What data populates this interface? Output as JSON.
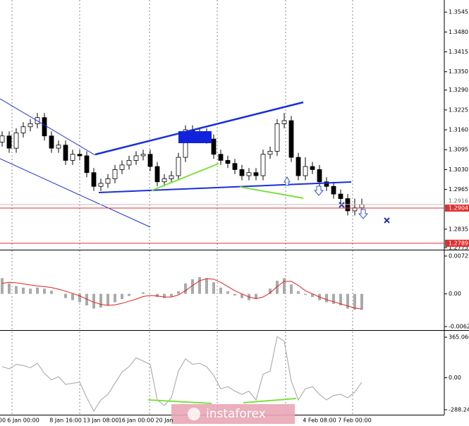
{
  "chart_data": [
    {
      "type": "candlestick",
      "categories": [
        "00",
        null,
        null,
        "6 Jan 00:00",
        null,
        null,
        null,
        null,
        null,
        "8 Jan 16:00",
        null,
        null,
        null,
        null,
        "13 Jan 08:00",
        null,
        null,
        null,
        null,
        "16 Jan 00:00",
        null,
        null,
        null,
        "20 Jan",
        null,
        null,
        null,
        null,
        null,
        null,
        null,
        null,
        null,
        null,
        null,
        null,
        null,
        null,
        null,
        null,
        null,
        null,
        null,
        null,
        null,
        "4 Feb 08:00",
        null,
        null,
        null,
        null,
        "7 Feb 00:00",
        null
      ],
      "open": [
        1.312,
        1.314,
        1.31,
        1.315,
        1.317,
        1.318,
        1.32,
        1.314,
        1.31,
        1.311,
        1.306,
        1.308,
        1.3075,
        1.302,
        1.2975,
        1.2985,
        1.3,
        1.303,
        1.3045,
        1.306,
        1.3075,
        1.308,
        1.304,
        1.299,
        1.3,
        1.301,
        1.307,
        1.316,
        1.314,
        1.315,
        1.313,
        1.308,
        1.306,
        1.305,
        1.303,
        1.301,
        1.302,
        1.301,
        1.308,
        1.309,
        1.318,
        1.319,
        1.307,
        1.301,
        1.304,
        1.303,
        1.299,
        1.2975,
        1.295,
        1.2935,
        1.2895,
        1.2905
      ],
      "high": [
        1.3155,
        1.3155,
        1.3165,
        1.3185,
        1.3195,
        1.3215,
        1.3215,
        1.3155,
        1.3125,
        1.3125,
        1.3095,
        1.3095,
        1.309,
        1.3035,
        1.3,
        1.3015,
        1.3045,
        1.306,
        1.3075,
        1.309,
        1.3095,
        1.3095,
        1.3055,
        1.3015,
        1.3025,
        1.3085,
        1.3175,
        1.3175,
        1.3165,
        1.3165,
        1.3145,
        1.3095,
        1.3075,
        1.3065,
        1.3045,
        1.3035,
        1.3035,
        1.3095,
        1.3105,
        1.3195,
        1.3215,
        1.3205,
        1.3085,
        1.307,
        1.3055,
        1.3045,
        1.3005,
        1.299,
        1.2965,
        1.295,
        1.2935,
        1.2935
      ],
      "low": [
        1.3105,
        1.3085,
        1.3085,
        1.3135,
        1.3155,
        1.3165,
        1.3125,
        1.3085,
        1.3085,
        1.3045,
        1.3045,
        1.306,
        1.3005,
        1.296,
        1.296,
        1.297,
        1.2985,
        1.3015,
        1.303,
        1.3045,
        1.306,
        1.3025,
        1.2975,
        1.2975,
        1.2985,
        1.2995,
        1.3055,
        1.3125,
        1.3125,
        1.3115,
        1.3065,
        1.3045,
        1.3035,
        1.3015,
        1.2995,
        1.2995,
        1.2995,
        1.2995,
        1.3065,
        1.3075,
        1.3165,
        1.3055,
        1.2995,
        1.2995,
        1.3015,
        1.2975,
        1.296,
        1.2935,
        1.292,
        1.288,
        1.288,
        1.289
      ],
      "close": [
        1.314,
        1.31,
        1.315,
        1.317,
        1.318,
        1.32,
        1.314,
        1.31,
        1.311,
        1.306,
        1.308,
        1.3075,
        1.302,
        1.2975,
        1.2985,
        1.3,
        1.303,
        1.3045,
        1.306,
        1.3075,
        1.308,
        1.304,
        1.299,
        1.3,
        1.301,
        1.307,
        1.316,
        1.314,
        1.315,
        1.313,
        1.308,
        1.306,
        1.305,
        1.303,
        1.301,
        1.302,
        1.301,
        1.308,
        1.309,
        1.318,
        1.319,
        1.307,
        1.301,
        1.304,
        1.303,
        1.299,
        1.2975,
        1.295,
        1.2935,
        1.2895,
        1.2905,
        1.2916
      ],
      "ylim": [
        1.2768,
        1.358
      ],
      "yticks": [
        1.3545,
        {
          "value": 1.348,
          "label": "1.3480"
        },
        1.3415,
        {
          "value": 1.335,
          "label": "1.3350"
        },
        {
          "value": 1.329,
          "label": "1.3290"
        },
        1.3225,
        {
          "value": 1.316,
          "label": "1.3160"
        },
        1.3095,
        {
          "value": 1.303,
          "label": "1.3030"
        },
        1.2965,
        1.2835,
        1.2775
      ],
      "levels": [
        1.2904,
        1.2789
      ],
      "level_color": "#e03030",
      "current_price": 1.2916
    },
    {
      "type": "macd",
      "histogram": [
        0.003,
        0.002,
        0.0015,
        0.0012,
        0.001,
        0.0012,
        0.001,
        0.0006,
        0,
        -0.0008,
        -0.0012,
        -0.0016,
        -0.0022,
        -0.0028,
        -0.0026,
        -0.0022,
        -0.0016,
        -0.001,
        -0.0004,
        0,
        0.0003,
        0,
        -0.0006,
        -0.0008,
        -0.0005,
        0.0005,
        0.002,
        0.0028,
        0.0032,
        0.003,
        0.0022,
        0.0012,
        0.0005,
        -0.0003,
        -0.0008,
        -0.0012,
        -0.001,
        0,
        0.001,
        0.0025,
        0.003,
        0.0018,
        0.0005,
        -0.0002,
        -0.0006,
        -0.0012,
        -0.0016,
        -0.0019,
        -0.0022,
        -0.0028,
        -0.003,
        -0.003
      ],
      "signal": [
        0.002,
        0.0022,
        0.0021,
        0.0019,
        0.0017,
        0.0015,
        0.0014,
        0.0012,
        0.0009,
        0.0005,
        0.0001,
        -0.0004,
        -0.001,
        -0.0016,
        -0.002,
        -0.0022,
        -0.0021,
        -0.0018,
        -0.0014,
        -0.001,
        -0.0005,
        -0.0003,
        -0.0004,
        -0.0006,
        -0.0006,
        -0.0002,
        0.0006,
        0.0016,
        0.0025,
        0.0029,
        0.0028,
        0.0022,
        0.0014,
        0.0006,
        0,
        -0.0006,
        -0.0009,
        -0.0006,
        0.0002,
        0.0014,
        0.0024,
        0.0024,
        0.0016,
        0.0006,
        0,
        -0.0006,
        -0.0011,
        -0.0015,
        -0.0019,
        -0.0023,
        -0.0027,
        -0.0029
      ],
      "histogram_color": "#aaaaaa",
      "signal_color": "#e02020",
      "ylim": [
        -0.00677,
        0.00816
      ],
      "yticks": [
        0.00722,
        {
          "value": 0,
          "label": "0.00"
        },
        -0.00623
      ]
    },
    {
      "type": "line",
      "values": [
        100,
        80,
        120,
        110,
        90,
        130,
        40,
        -20,
        10,
        -60,
        -50,
        -40,
        -180,
        -300,
        -200,
        -150,
        -50,
        50,
        100,
        180,
        150,
        120,
        -200,
        -250,
        -180,
        60,
        170,
        120,
        130,
        100,
        20,
        -100,
        -80,
        -120,
        -150,
        -120,
        -200,
        30,
        60,
        370,
        330,
        -30,
        -200,
        -100,
        -80,
        -150,
        -200,
        -160,
        -150,
        -180,
        -130,
        -40
      ],
      "color": "#b0b0b0",
      "ylim": [
        -333,
        410
      ],
      "yticks": [
        365.0666,
        {
          "value": 0,
          "label": "0.00"
        },
        -288.2424
      ]
    }
  ],
  "watermark": "instaforex"
}
